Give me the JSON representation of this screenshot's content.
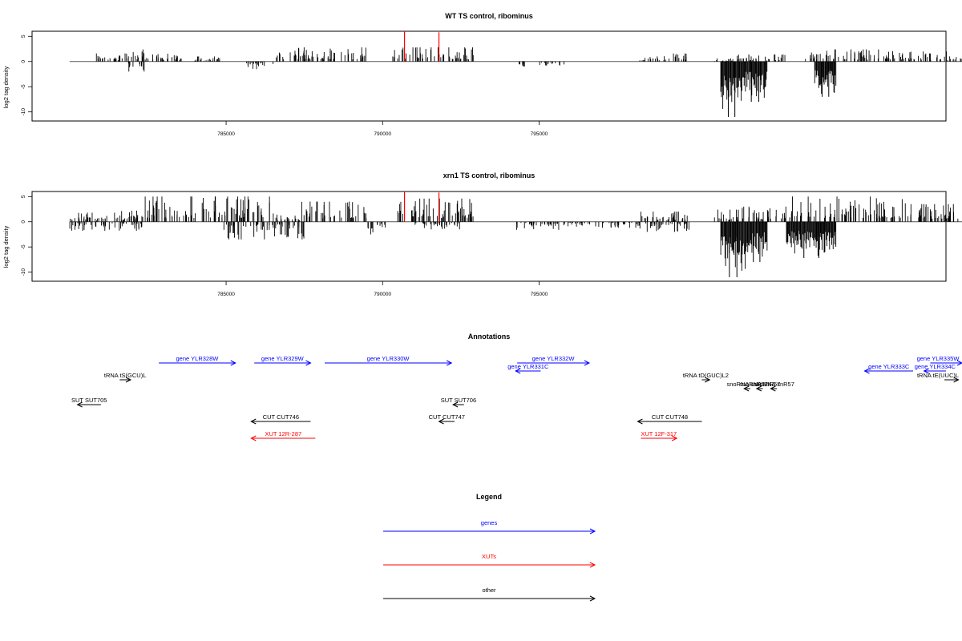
{
  "figure": {
    "panels": [
      {
        "title": "WT TS control, ribominus",
        "ylabel": "log2 tag density"
      },
      {
        "title": "xrn1 TS control, ribominus",
        "ylabel": "log2 tag density"
      }
    ],
    "annotations_title": "Annotations",
    "legend_title": "Legend"
  },
  "chart_data": [
    {
      "type": "bar",
      "title": "WT TS control, ribominus",
      "xlabel": "",
      "ylabel": "log2 tag density",
      "xlim": [
        778800,
        808000
      ],
      "ylim": [
        -11.8,
        6
      ],
      "xticks": [
        785000,
        790000,
        795000
      ],
      "xtick_labels": [
        "785000",
        "790000",
        "795000"
      ],
      "yticks": [
        -10,
        -5,
        0,
        5
      ],
      "ytick_labels": [
        "-10",
        "-5",
        "0",
        "5"
      ],
      "data_range": [
        780000,
        809000
      ],
      "plus_strand_blocks": [
        {
          "from": 780700,
          "to": 781600,
          "height": 1.6
        },
        {
          "from": 781600,
          "to": 782500,
          "height": 2.4
        },
        {
          "from": 782500,
          "to": 783800,
          "height": 1.6
        },
        {
          "from": 783800,
          "to": 784800,
          "height": 1.0
        },
        {
          "from": 786600,
          "to": 787500,
          "height": 2.8
        },
        {
          "from": 787500,
          "to": 789500,
          "height": 2.8
        },
        {
          "from": 790300,
          "to": 792900,
          "height": 2.8
        },
        {
          "from": 798200,
          "to": 799800,
          "height": 1.6
        },
        {
          "from": 800600,
          "to": 801400,
          "height": 0.6
        },
        {
          "from": 801300,
          "to": 802900,
          "height": 1.4
        },
        {
          "from": 803500,
          "to": 806800,
          "height": 2.4
        },
        {
          "from": 806800,
          "to": 809000,
          "height": 2.0
        }
      ],
      "minus_strand_blocks": [
        {
          "from": 781800,
          "to": 782400,
          "height": 2.0
        },
        {
          "from": 785600,
          "to": 786500,
          "height": 1.5
        },
        {
          "from": 794200,
          "to": 794600,
          "height": 1.0
        },
        {
          "from": 795000,
          "to": 795800,
          "height": 0.8
        }
      ],
      "minus_strand_peaks": [
        {
          "from": 800800,
          "to": 801500,
          "depth": 11.0
        },
        {
          "from": 801500,
          "to": 802300,
          "depth": 8.0
        },
        {
          "from": 803800,
          "to": 804500,
          "depth": 7.0
        }
      ],
      "highlight_bars": [
        {
          "x": 790700,
          "value": 6.0,
          "color": "#ff0000"
        },
        {
          "x": 791800,
          "value": 5.8,
          "color": "#ff0000"
        }
      ]
    },
    {
      "type": "bar",
      "title": "xrn1 TS control, ribominus",
      "xlabel": "",
      "ylabel": "log2 tag density",
      "xlim": [
        778800,
        808000
      ],
      "ylim": [
        -11.8,
        6
      ],
      "xticks": [
        785000,
        790000,
        795000
      ],
      "xtick_labels": [
        "785000",
        "790000",
        "795000"
      ],
      "yticks": [
        -10,
        -5,
        0,
        5
      ],
      "ytick_labels": [
        "-10",
        "-5",
        "0",
        "5"
      ],
      "data_range": [
        780000,
        809000
      ],
      "plus_strand_blocks": [
        {
          "from": 780000,
          "to": 781000,
          "height": 1.8
        },
        {
          "from": 781000,
          "to": 782300,
          "height": 2.2
        },
        {
          "from": 782300,
          "to": 786600,
          "height": 5.0
        },
        {
          "from": 786600,
          "to": 787400,
          "height": 1.5
        },
        {
          "from": 787400,
          "to": 789500,
          "height": 4.0
        },
        {
          "from": 790300,
          "to": 792900,
          "height": 4.6
        },
        {
          "from": 798200,
          "to": 799800,
          "height": 2.0
        },
        {
          "from": 800600,
          "to": 801400,
          "height": 2.4
        },
        {
          "from": 801300,
          "to": 802900,
          "height": 3.0
        },
        {
          "from": 803000,
          "to": 806800,
          "height": 5.0
        },
        {
          "from": 806800,
          "to": 809000,
          "height": 3.5
        }
      ],
      "minus_strand_blocks": [
        {
          "from": 780000,
          "to": 782400,
          "height": 1.8
        },
        {
          "from": 784800,
          "to": 787500,
          "height": 3.5
        },
        {
          "from": 789500,
          "to": 790100,
          "height": 2.5
        },
        {
          "from": 791000,
          "to": 792500,
          "height": 1.5
        },
        {
          "from": 794200,
          "to": 795900,
          "height": 1.6
        },
        {
          "from": 795900,
          "to": 798200,
          "height": 1.2
        },
        {
          "from": 798200,
          "to": 799800,
          "height": 2.0
        }
      ],
      "minus_strand_peaks": [
        {
          "from": 800800,
          "to": 801600,
          "depth": 11.0
        },
        {
          "from": 801600,
          "to": 802300,
          "depth": 8.0
        },
        {
          "from": 802900,
          "to": 804500,
          "depth": 7.2
        }
      ],
      "highlight_bars": [
        {
          "x": 790700,
          "value": 6.0,
          "color": "#ff0000"
        },
        {
          "x": 791800,
          "value": 5.8,
          "color": "#ff0000"
        }
      ]
    }
  ],
  "annotations": {
    "features": [
      {
        "label": "gene YLR328W",
        "strand": "+",
        "start": 782850,
        "end": 785300,
        "color": "#0000ff",
        "row": 1
      },
      {
        "label": "gene YLR329W",
        "strand": "+",
        "start": 785900,
        "end": 787700,
        "color": "#0000ff",
        "row": 1
      },
      {
        "label": "gene YLR330W",
        "strand": "+",
        "start": 788150,
        "end": 792200,
        "color": "#0000ff",
        "row": 1
      },
      {
        "label": "gene YLR332W",
        "strand": "+",
        "start": 794300,
        "end": 796600,
        "color": "#0000ff",
        "row": 1
      },
      {
        "label": "gene YLR331C",
        "strand": "-",
        "start": 794250,
        "end": 795050,
        "color": "#0000ff",
        "row": 2
      },
      {
        "label": "gene YLR335W",
        "strand": "+",
        "start": 807500,
        "end": 812700,
        "color": "#0000ff",
        "row": 1
      },
      {
        "label": "gene YLR333C",
        "strand": "-",
        "start": 805400,
        "end": 806950,
        "color": "#0000ff",
        "row": 2
      },
      {
        "label": "gene YLR334C",
        "strand": "-",
        "start": 807300,
        "end": 808000,
        "color": "#0000ff",
        "row": 2
      },
      {
        "label": "tRNA tS(GCU)L",
        "strand": "+",
        "start": 781600,
        "end": 781950,
        "color": "#000000",
        "row": 3
      },
      {
        "label": "tRNA tD(GUC)L2",
        "strand": "+",
        "start": 800200,
        "end": 800450,
        "color": "#000000",
        "row": 3
      },
      {
        "label": "tRNA tE(UUC)L",
        "strand": "+",
        "start": 807950,
        "end": 808400,
        "color": "#000000",
        "row": 3
      },
      {
        "label": "snoRNA snR57",
        "strand": "-",
        "start": 801550,
        "end": 801750,
        "color": "#000000",
        "row": 4
      },
      {
        "label": "snoRNA snR57",
        "strand": "-",
        "start": 801950,
        "end": 802150,
        "color": "#000000",
        "row": 4
      },
      {
        "label": "snoRNA snR57",
        "strand": "-",
        "start": 802400,
        "end": 802600,
        "color": "#000000",
        "row": 4
      },
      {
        "label": "SUT SUT705",
        "strand": "-",
        "start": 780250,
        "end": 781000,
        "color": "#000000",
        "row": 5
      },
      {
        "label": "SUT SUT706",
        "strand": "-",
        "start": 792250,
        "end": 792600,
        "color": "#000000",
        "row": 5
      },
      {
        "label": "CUT CUT746",
        "strand": "-",
        "start": 785800,
        "end": 787700,
        "color": "#000000",
        "row": 6
      },
      {
        "label": "CUT CUT747",
        "strand": "-",
        "start": 791800,
        "end": 792300,
        "color": "#000000",
        "row": 6
      },
      {
        "label": "CUT CUT748",
        "strand": "-",
        "start": 798150,
        "end": 800200,
        "color": "#000000",
        "row": 6
      },
      {
        "label": "XUT 12R-287",
        "strand": "-",
        "start": 785800,
        "end": 787850,
        "color": "#ff0000",
        "row": 7
      },
      {
        "label": "XUT 12F-317",
        "strand": "+",
        "start": 798250,
        "end": 799400,
        "color": "#ff0000",
        "row": 7
      }
    ]
  },
  "legend": {
    "items": [
      {
        "label": "genes",
        "color": "#0000ff"
      },
      {
        "label": "XUTs",
        "color": "#ff0000"
      },
      {
        "label": "other",
        "color": "#000000"
      }
    ]
  }
}
